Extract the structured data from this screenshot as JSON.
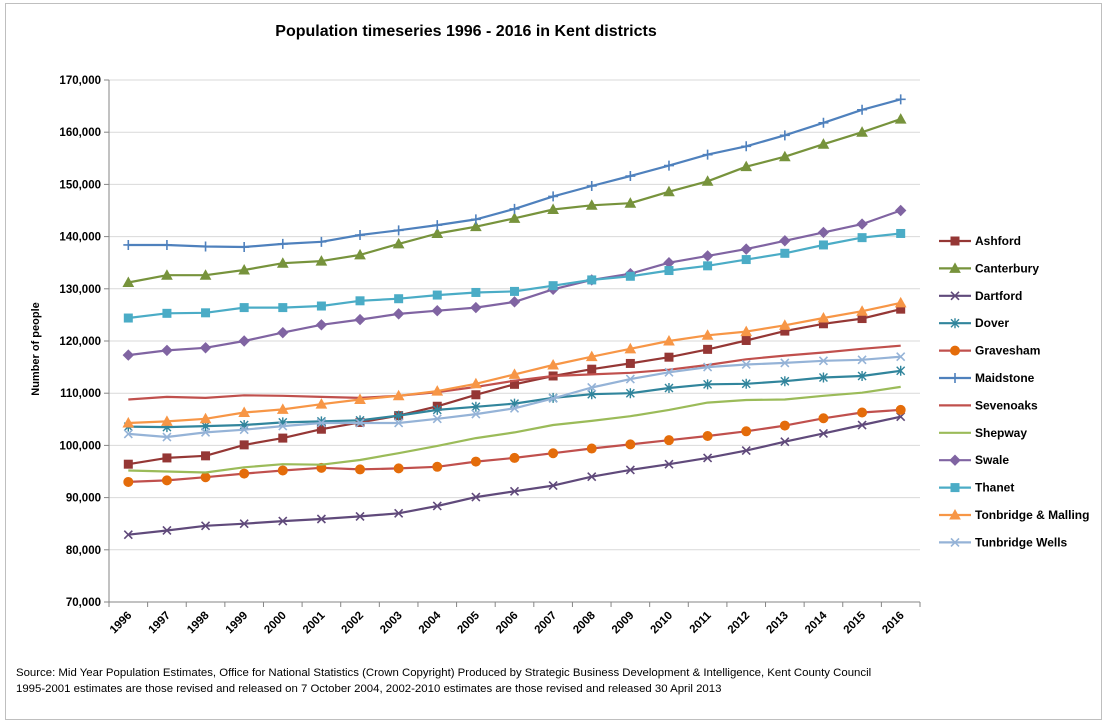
{
  "chart_data": {
    "type": "line",
    "title": "Population timeseries 1996 - 2016 in Kent districts",
    "xlabel": "",
    "ylabel": "Number of people",
    "ylim": [
      70000,
      170000
    ],
    "yticks": [
      70000,
      80000,
      90000,
      100000,
      110000,
      120000,
      130000,
      140000,
      150000,
      160000,
      170000
    ],
    "ytick_labels": [
      "70,000",
      "80,000",
      "90,000",
      "100,000",
      "110,000",
      "120,000",
      "130,000",
      "140,000",
      "150,000",
      "160,000",
      "170,000"
    ],
    "grid": "horizontal",
    "legend_position": "right",
    "categories": [
      "1996",
      "1997",
      "1998",
      "1999",
      "2000",
      "2001",
      "2002",
      "2003",
      "2004",
      "2005",
      "2006",
      "2007",
      "2008",
      "2009",
      "2010",
      "2011",
      "2012",
      "2013",
      "2014",
      "2015",
      "2016"
    ],
    "series": [
      {
        "name": "Ashford",
        "color": "#953735",
        "marker": "square",
        "values": [
          96400,
          97600,
          98000,
          100100,
          101400,
          103100,
          104400,
          105700,
          107500,
          109700,
          111700,
          113300,
          114600,
          115700,
          116900,
          118400,
          120100,
          121900,
          123300,
          124300,
          126100
        ]
      },
      {
        "name": "Canterbury",
        "color": "#77933c",
        "marker": "triangle",
        "values": [
          131200,
          132600,
          132600,
          133600,
          134900,
          135300,
          136500,
          138600,
          140600,
          141900,
          143500,
          145200,
          146000,
          146400,
          148600,
          150600,
          153400,
          155300,
          157700,
          160000,
          162500
        ]
      },
      {
        "name": "Dartford",
        "color": "#604a7b",
        "marker": "x",
        "values": [
          82900,
          83700,
          84600,
          85000,
          85500,
          85900,
          86400,
          87000,
          88400,
          90100,
          91200,
          92300,
          94000,
          95300,
          96400,
          97600,
          99000,
          100700,
          102300,
          103900,
          105500
        ]
      },
      {
        "name": "Dover",
        "color": "#31859c",
        "marker": "star",
        "values": [
          103600,
          103500,
          103700,
          103900,
          104400,
          104600,
          104800,
          105700,
          106800,
          107400,
          108000,
          109100,
          109800,
          110000,
          111000,
          111700,
          111800,
          112300,
          113000,
          113300,
          114300
        ]
      },
      {
        "name": "Gravesham",
        "color": "#c0504d",
        "marker": "circle",
        "marker_fill": "#e46c0a",
        "values": [
          93000,
          93300,
          93900,
          94600,
          95200,
          95700,
          95400,
          95600,
          95900,
          96900,
          97600,
          98500,
          99400,
          100200,
          101000,
          101800,
          102700,
          103800,
          105200,
          106300,
          106800
        ]
      },
      {
        "name": "Maidstone",
        "color": "#4f81bd",
        "marker": "plus",
        "values": [
          138400,
          138400,
          138100,
          138000,
          138600,
          139000,
          140300,
          141200,
          142200,
          143300,
          145300,
          147700,
          149700,
          151600,
          153600,
          155700,
          157300,
          159400,
          161800,
          164300,
          166300
        ]
      },
      {
        "name": "Sevenoaks",
        "color": "#c0504d",
        "marker": "none",
        "values": [
          108800,
          109300,
          109100,
          109600,
          109500,
          109300,
          109100,
          109500,
          110200,
          111200,
          112400,
          113300,
          113600,
          113900,
          114500,
          115400,
          116500,
          117200,
          117800,
          118500,
          119100
        ]
      },
      {
        "name": "Shepway",
        "color": "#9bbb59",
        "marker": "none",
        "values": [
          95200,
          95000,
          94800,
          95800,
          96400,
          96300,
          97200,
          98500,
          99900,
          101400,
          102500,
          103900,
          104700,
          105600,
          106800,
          108200,
          108700,
          108800,
          109500,
          110100,
          111200
        ]
      },
      {
        "name": "Swale",
        "color": "#8064a2",
        "marker": "diamond",
        "values": [
          117300,
          118200,
          118700,
          120000,
          121600,
          123100,
          124100,
          125200,
          125800,
          126400,
          127500,
          129900,
          131700,
          132900,
          135000,
          136300,
          137600,
          139200,
          140800,
          142400,
          145000
        ]
      },
      {
        "name": "Thanet",
        "color": "#4bacc6",
        "marker": "square",
        "values": [
          124400,
          125300,
          125400,
          126400,
          126400,
          126700,
          127700,
          128100,
          128800,
          129300,
          129500,
          130600,
          131700,
          132400,
          133500,
          134400,
          135600,
          136800,
          138400,
          139800,
          140600
        ]
      },
      {
        "name": "Tonbridge & Malling",
        "color": "#f79646",
        "marker": "triangle",
        "values": [
          104300,
          104600,
          105100,
          106300,
          106900,
          107900,
          108800,
          109500,
          110400,
          111800,
          113600,
          115400,
          117000,
          118500,
          120000,
          121100,
          121800,
          123000,
          124400,
          125700,
          127300
        ]
      },
      {
        "name": "Tunbridge Wells",
        "color": "#95b3d7",
        "marker": "x",
        "values": [
          102200,
          101600,
          102500,
          103000,
          103700,
          104300,
          104300,
          104300,
          105100,
          106000,
          107100,
          109000,
          111100,
          112700,
          114000,
          115000,
          115500,
          115800,
          116200,
          116400,
          117000
        ]
      }
    ]
  },
  "source_line_1": "Source: Mid Year Population Estimates, Office for National Statistics (Crown Copyright) Produced by  Strategic Business Development & Intelligence,  Kent County Council",
  "source_line_2": "1995-2001 estimates are those revised and released on 7 October 2004, 2002-2010 estimates are those revised and released   30 April 2013"
}
